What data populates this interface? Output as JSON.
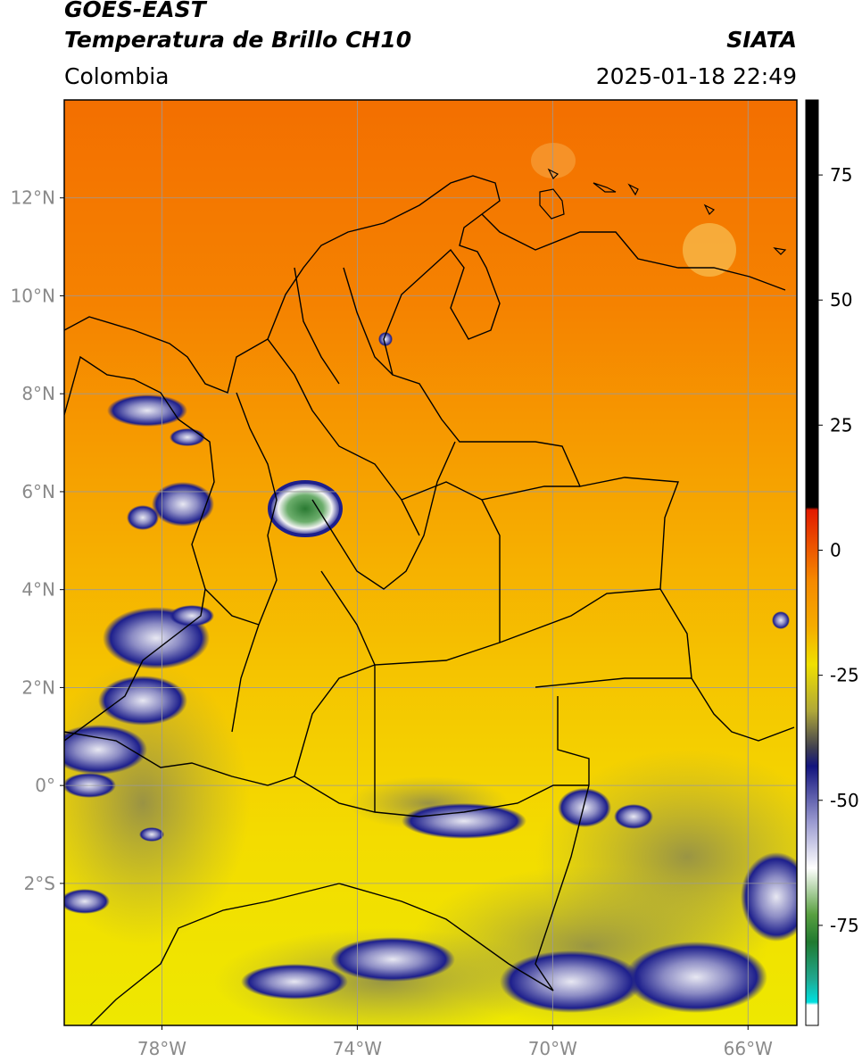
{
  "header": {
    "satellite": "GOES-EAST",
    "product": "Temperatura de Brillo CH10",
    "region": "Colombia",
    "agency": "SIATA",
    "timestamp": "2025-01-18 22:49"
  },
  "map": {
    "lon_range": [
      -80.0,
      -65.0
    ],
    "lat_range": [
      -4.9,
      14.0
    ],
    "lat_ticks": [
      {
        "value": 12,
        "label": "12°N"
      },
      {
        "value": 10,
        "label": "10°N"
      },
      {
        "value": 8,
        "label": "8°N"
      },
      {
        "value": 6,
        "label": "6°N"
      },
      {
        "value": 4,
        "label": "4°N"
      },
      {
        "value": 2,
        "label": "2°N"
      },
      {
        "value": 0,
        "label": "0°"
      },
      {
        "value": -2,
        "label": "2°S"
      }
    ],
    "lon_ticks": [
      {
        "value": -78,
        "label": "78°W"
      },
      {
        "value": -74,
        "label": "74°W"
      },
      {
        "value": -70,
        "label": "70°W"
      },
      {
        "value": -66,
        "label": "66°W"
      }
    ],
    "grid": true,
    "colors": {
      "orange": "#f57e00",
      "yellow": "#f5e600",
      "cold_blue": "#141a8c",
      "gridline": "#9a9a9a"
    }
  },
  "colorbar": {
    "range": [
      -95,
      90
    ],
    "ticks": [
      {
        "value": 75,
        "label": "75"
      },
      {
        "value": 50,
        "label": "50"
      },
      {
        "value": 25,
        "label": "25"
      },
      {
        "value": 0,
        "label": "0"
      },
      {
        "value": -25,
        "label": "-25"
      },
      {
        "value": -50,
        "label": "-50"
      },
      {
        "value": -75,
        "label": "-75"
      }
    ]
  }
}
